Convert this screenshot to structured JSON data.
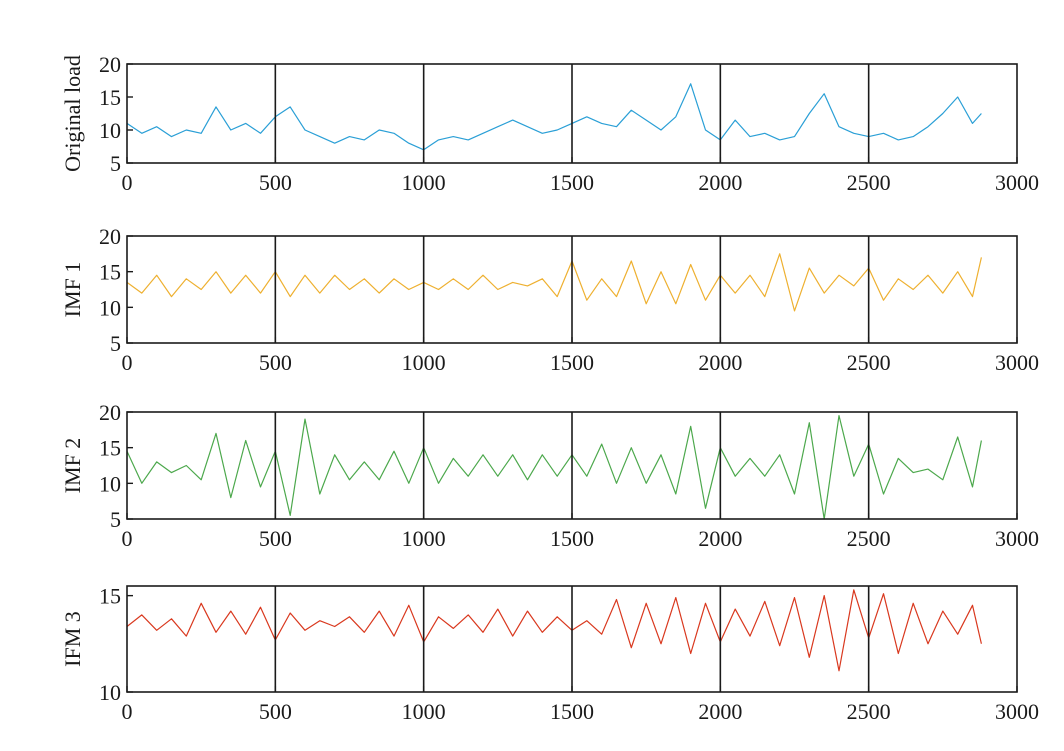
{
  "chart_data": [
    {
      "type": "line",
      "ylabel": "Original load",
      "xlim": [
        0,
        3000
      ],
      "ylim": [
        5,
        20
      ],
      "xticks": [
        0,
        500,
        1000,
        1500,
        2000,
        2500,
        3000
      ],
      "yticks": [
        5,
        10,
        15,
        20
      ],
      "divisions": [
        500,
        1000,
        1500,
        2000,
        2500
      ],
      "color": "#2a9fd6",
      "series": [
        {
          "name": "Original load",
          "x": [
            0,
            50,
            100,
            150,
            200,
            250,
            300,
            350,
            400,
            450,
            500,
            550,
            600,
            650,
            700,
            750,
            800,
            850,
            900,
            950,
            1000,
            1050,
            1100,
            1150,
            1200,
            1250,
            1300,
            1350,
            1400,
            1450,
            1500,
            1550,
            1600,
            1650,
            1700,
            1750,
            1800,
            1850,
            1900,
            1950,
            2000,
            2050,
            2100,
            2150,
            2200,
            2250,
            2300,
            2350,
            2400,
            2450,
            2500,
            2550,
            2600,
            2650,
            2700,
            2750,
            2800,
            2850,
            2880
          ],
          "y": [
            11.0,
            9.5,
            10.5,
            9.0,
            10.0,
            9.5,
            13.5,
            10.0,
            11.0,
            9.5,
            12.0,
            13.5,
            10.0,
            9.0,
            8.0,
            9.0,
            8.5,
            10.0,
            9.5,
            8.0,
            7.0,
            8.5,
            9.0,
            8.5,
            9.5,
            10.5,
            11.5,
            10.5,
            9.5,
            10.0,
            11.0,
            12.0,
            11.0,
            10.5,
            13.0,
            11.5,
            10.0,
            12.0,
            17.0,
            10.0,
            8.5,
            11.5,
            9.0,
            9.5,
            8.5,
            9.0,
            12.5,
            15.5,
            10.5,
            9.5,
            9.0,
            9.5,
            8.5,
            9.0,
            10.5,
            12.5,
            15.0,
            11.0,
            12.5
          ]
        }
      ]
    },
    {
      "type": "line",
      "ylabel": "IMF 1",
      "xlim": [
        0,
        3000
      ],
      "ylim": [
        5,
        20
      ],
      "xticks": [
        0,
        500,
        1000,
        1500,
        2000,
        2500,
        3000
      ],
      "yticks": [
        5,
        10,
        15,
        20
      ],
      "divisions": [
        500,
        1000,
        1500,
        2000,
        2500
      ],
      "color": "#eeb030",
      "series": [
        {
          "name": "IMF 1",
          "x": [
            0,
            50,
            100,
            150,
            200,
            250,
            300,
            350,
            400,
            450,
            500,
            550,
            600,
            650,
            700,
            750,
            800,
            850,
            900,
            950,
            1000,
            1050,
            1100,
            1150,
            1200,
            1250,
            1300,
            1350,
            1400,
            1450,
            1500,
            1550,
            1600,
            1650,
            1700,
            1750,
            1800,
            1850,
            1900,
            1950,
            2000,
            2050,
            2100,
            2150,
            2200,
            2250,
            2300,
            2350,
            2400,
            2450,
            2500,
            2550,
            2600,
            2650,
            2700,
            2750,
            2800,
            2850,
            2880
          ],
          "y": [
            13.5,
            12.0,
            14.5,
            11.5,
            14.0,
            12.5,
            15.0,
            12.0,
            14.5,
            12.0,
            15.0,
            11.5,
            14.5,
            12.0,
            14.5,
            12.5,
            14.0,
            12.0,
            14.0,
            12.5,
            13.5,
            12.5,
            14.0,
            12.5,
            14.5,
            12.5,
            13.5,
            13.0,
            14.0,
            11.5,
            16.5,
            11.0,
            14.0,
            11.5,
            16.5,
            10.5,
            15.0,
            10.5,
            16.0,
            11.0,
            14.5,
            12.0,
            14.5,
            11.5,
            17.5,
            9.5,
            15.5,
            12.0,
            14.5,
            13.0,
            15.5,
            11.0,
            14.0,
            12.5,
            14.5,
            12.0,
            15.0,
            11.5,
            17.0
          ]
        }
      ]
    },
    {
      "type": "line",
      "ylabel": "IMF 2",
      "xlim": [
        0,
        3000
      ],
      "ylim": [
        5,
        20
      ],
      "xticks": [
        0,
        500,
        1000,
        1500,
        2000,
        2500,
        3000
      ],
      "yticks": [
        5,
        10,
        15,
        20
      ],
      "divisions": [
        500,
        1000,
        1500,
        2000,
        2500
      ],
      "color": "#4ca84c",
      "series": [
        {
          "name": "IMF 2",
          "x": [
            0,
            50,
            100,
            150,
            200,
            250,
            300,
            350,
            400,
            450,
            500,
            550,
            600,
            650,
            700,
            750,
            800,
            850,
            900,
            950,
            1000,
            1050,
            1100,
            1150,
            1200,
            1250,
            1300,
            1350,
            1400,
            1450,
            1500,
            1550,
            1600,
            1650,
            1700,
            1750,
            1800,
            1850,
            1900,
            1950,
            2000,
            2050,
            2100,
            2150,
            2200,
            2250,
            2300,
            2350,
            2400,
            2450,
            2500,
            2550,
            2600,
            2650,
            2700,
            2750,
            2800,
            2850,
            2880
          ],
          "y": [
            14.5,
            10.0,
            13.0,
            11.5,
            12.5,
            10.5,
            17.0,
            8.0,
            16.0,
            9.5,
            14.5,
            5.5,
            19.0,
            8.5,
            14.0,
            10.5,
            13.0,
            10.5,
            14.5,
            10.0,
            15.0,
            10.0,
            13.5,
            11.0,
            14.0,
            11.0,
            14.0,
            10.5,
            14.0,
            11.0,
            14.0,
            11.0,
            15.5,
            10.0,
            15.0,
            10.0,
            14.0,
            8.5,
            18.0,
            6.5,
            15.0,
            11.0,
            13.5,
            11.0,
            14.0,
            8.5,
            18.5,
            5.0,
            19.5,
            11.0,
            15.5,
            8.5,
            13.5,
            11.5,
            12.0,
            10.5,
            16.5,
            9.5,
            16.0
          ]
        }
      ]
    },
    {
      "type": "line",
      "ylabel": "IFM 3",
      "xlim": [
        0,
        3000
      ],
      "ylim": [
        10,
        15.5
      ],
      "xticks": [
        0,
        500,
        1000,
        1500,
        2000,
        2500,
        3000
      ],
      "yticks": [
        10,
        15
      ],
      "divisions": [
        500,
        1000,
        1500,
        2000,
        2500
      ],
      "color": "#d9381e",
      "series": [
        {
          "name": "IFM 3",
          "x": [
            0,
            50,
            100,
            150,
            200,
            250,
            300,
            350,
            400,
            450,
            500,
            550,
            600,
            650,
            700,
            750,
            800,
            850,
            900,
            950,
            1000,
            1050,
            1100,
            1150,
            1200,
            1250,
            1300,
            1350,
            1400,
            1450,
            1500,
            1550,
            1600,
            1650,
            1700,
            1750,
            1800,
            1850,
            1900,
            1950,
            2000,
            2050,
            2100,
            2150,
            2200,
            2250,
            2300,
            2350,
            2400,
            2450,
            2500,
            2550,
            2600,
            2650,
            2700,
            2750,
            2800,
            2850,
            2880
          ],
          "y": [
            13.4,
            14.0,
            13.2,
            13.8,
            12.9,
            14.6,
            13.1,
            14.2,
            13.0,
            14.4,
            12.7,
            14.1,
            13.2,
            13.7,
            13.4,
            13.9,
            13.1,
            14.2,
            12.9,
            14.5,
            12.6,
            13.9,
            13.3,
            14.0,
            13.1,
            14.3,
            12.9,
            14.2,
            13.1,
            13.9,
            13.2,
            13.7,
            13.0,
            14.8,
            12.3,
            14.6,
            12.5,
            14.9,
            12.0,
            14.6,
            12.6,
            14.3,
            12.9,
            14.7,
            12.4,
            14.9,
            11.8,
            15.0,
            11.1,
            15.3,
            12.8,
            15.1,
            12.0,
            14.6,
            12.5,
            14.2,
            13.0,
            14.5,
            12.5
          ]
        }
      ]
    }
  ]
}
